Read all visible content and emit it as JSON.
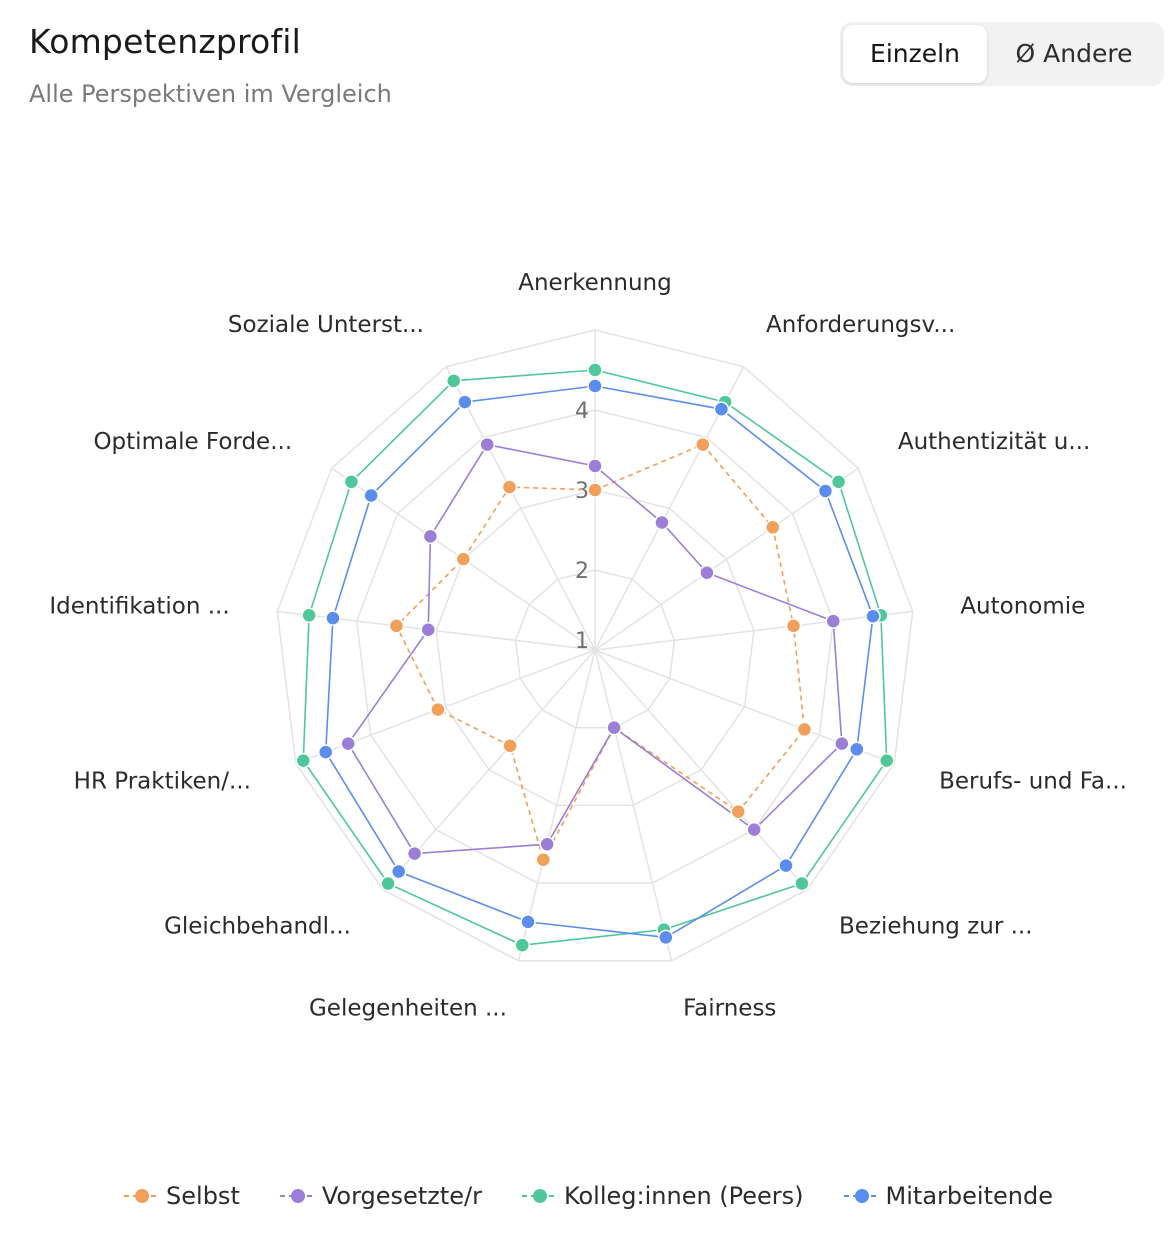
{
  "header": {
    "title": "Kompetenzprofil",
    "subtitle": "Alle Perspektiven im Vergleich"
  },
  "toggle": {
    "options": [
      "Einzeln",
      "Ø Andere"
    ],
    "selected": "Einzeln"
  },
  "chart_data": {
    "type": "radar",
    "axes": [
      "Anerkennung",
      "Anforderungsv...",
      "Authentizität u...",
      "Autonomie",
      "Berufs- und Fa...",
      "Beziehung zur ...",
      "Fairness",
      "Gelegenheiten ...",
      "Gleichbehandl...",
      "HR Praktiken/...",
      "Identifikation ...",
      "Optimale Forde...",
      "Soziale Unterst..."
    ],
    "scale_min": 1,
    "scale_max": 5,
    "ticks": [
      1,
      2,
      3,
      4
    ],
    "grid": true,
    "legend_position": "bottom",
    "series": [
      {
        "name": "Selbst",
        "color": "#f0a05a",
        "dashed": true,
        "values": [
          3.0,
          3.9,
          3.7,
          3.5,
          3.8,
          3.7,
          2.0,
          3.7,
          2.6,
          3.1,
          3.5,
          3.0,
          3.3
        ]
      },
      {
        "name": "Vorgesetzte/r",
        "color": "#9b7ed6",
        "dashed": false,
        "values": [
          3.3,
          2.8,
          2.7,
          4.0,
          4.3,
          4.0,
          2.0,
          3.5,
          4.4,
          4.3,
          3.1,
          3.5,
          3.9
        ]
      },
      {
        "name": "Kolleg:innen (Peers)",
        "color": "#4fc79a",
        "dashed": false,
        "values": [
          4.5,
          4.5,
          4.7,
          4.6,
          4.9,
          4.9,
          4.6,
          4.8,
          4.9,
          4.9,
          4.6,
          4.7,
          4.8
        ]
      },
      {
        "name": "Mitarbeitende",
        "color": "#5b8def",
        "dashed": false,
        "values": [
          4.3,
          4.4,
          4.5,
          4.5,
          4.5,
          4.6,
          4.7,
          4.5,
          4.7,
          4.6,
          4.3,
          4.4,
          4.5
        ]
      }
    ]
  }
}
